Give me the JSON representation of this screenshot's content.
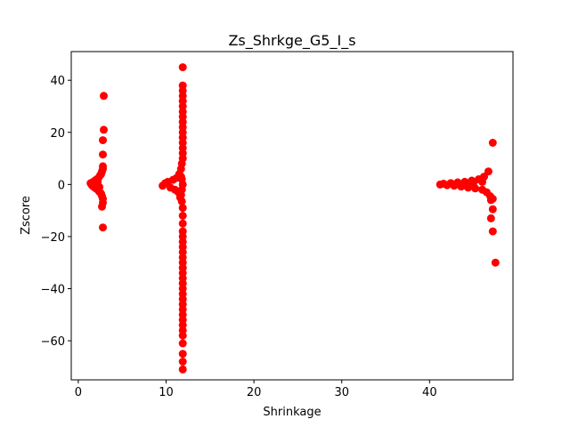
{
  "chart_data": {
    "type": "scatter",
    "title": "Zs_Shrkge_G5_I_s",
    "xlabel": "Shrinkage",
    "ylabel": "Zscore",
    "xlim": [
      -0.8,
      49.5
    ],
    "ylim": [
      -75,
      51
    ],
    "xticks": [
      0,
      10,
      20,
      30,
      40
    ],
    "yticks": [
      -60,
      -40,
      -20,
      0,
      20,
      40
    ],
    "xtick_labels": [
      "0",
      "10",
      "20",
      "30",
      "40"
    ],
    "ytick_labels": [
      "−60",
      "−40",
      "−20",
      "0",
      "20",
      "40"
    ],
    "grid": false,
    "marker_color": "#ff0000",
    "series": [
      {
        "points": [
          [
            1.4,
            0.5
          ],
          [
            1.5,
            0.0
          ],
          [
            1.6,
            -0.5
          ],
          [
            1.7,
            1.0
          ],
          [
            1.8,
            -1.0
          ],
          [
            1.9,
            1.5
          ],
          [
            2.0,
            -1.5
          ],
          [
            2.1,
            2.0
          ],
          [
            2.2,
            -2.0
          ],
          [
            2.3,
            2.5
          ],
          [
            2.4,
            -2.8
          ],
          [
            2.5,
            3.5
          ],
          [
            2.6,
            -3.5
          ],
          [
            2.6,
            4.0
          ],
          [
            2.7,
            -4.5
          ],
          [
            2.7,
            5.0
          ],
          [
            2.8,
            -5.5
          ],
          [
            2.8,
            6.0
          ],
          [
            2.8,
            -7.0
          ],
          [
            2.8,
            7.0
          ],
          [
            2.7,
            -8.5
          ],
          [
            2.8,
            11.5
          ],
          [
            2.8,
            17.0
          ],
          [
            2.9,
            21.0
          ],
          [
            2.9,
            34.0
          ],
          [
            2.8,
            -16.5
          ],
          [
            2.2,
            1.0
          ],
          [
            2.4,
            -1.0
          ],
          [
            9.6,
            -0.5
          ],
          [
            9.9,
            0.5
          ],
          [
            10.2,
            1.0
          ],
          [
            10.5,
            -1.2
          ],
          [
            10.8,
            1.8
          ],
          [
            11.0,
            -2.0
          ],
          [
            11.2,
            2.5
          ],
          [
            11.4,
            -3.0
          ],
          [
            11.5,
            4.0
          ],
          [
            11.6,
            -5.0
          ],
          [
            11.7,
            6.0
          ],
          [
            11.8,
            -6.5
          ],
          [
            11.8,
            8.0
          ],
          [
            11.9,
            -9.0
          ],
          [
            11.9,
            10.0
          ],
          [
            11.9,
            12.0
          ],
          [
            11.9,
            -12.0
          ],
          [
            11.9,
            14.0
          ],
          [
            11.9,
            -15.0
          ],
          [
            11.9,
            16.0
          ],
          [
            11.9,
            -18.0
          ],
          [
            11.9,
            18.0
          ],
          [
            11.9,
            -20.0
          ],
          [
            11.9,
            20.0
          ],
          [
            11.9,
            -22.0
          ],
          [
            11.9,
            22.0
          ],
          [
            11.9,
            -24.0
          ],
          [
            11.9,
            24.0
          ],
          [
            11.9,
            -26.0
          ],
          [
            11.9,
            26.0
          ],
          [
            11.9,
            -28.0
          ],
          [
            11.9,
            28.0
          ],
          [
            11.9,
            -30.0
          ],
          [
            11.9,
            30.0
          ],
          [
            11.9,
            -32.0
          ],
          [
            11.9,
            32.0
          ],
          [
            11.9,
            -34.0
          ],
          [
            11.9,
            34.0
          ],
          [
            11.9,
            -36.0
          ],
          [
            11.9,
            36.0
          ],
          [
            11.9,
            -38.0
          ],
          [
            11.9,
            38.0
          ],
          [
            11.9,
            -40.0
          ],
          [
            11.9,
            -42.0
          ],
          [
            11.9,
            -44.0
          ],
          [
            11.9,
            -46.0
          ],
          [
            11.9,
            -48.0
          ],
          [
            11.9,
            -50.0
          ],
          [
            11.9,
            -52.0
          ],
          [
            11.9,
            -54.0
          ],
          [
            11.9,
            -56.0
          ],
          [
            11.9,
            -58.0
          ],
          [
            11.9,
            -61.0
          ],
          [
            11.9,
            -65.0
          ],
          [
            11.9,
            -68.0
          ],
          [
            11.9,
            -71.0
          ],
          [
            11.9,
            45.0
          ],
          [
            11.9,
            0.0
          ],
          [
            11.8,
            2.0
          ],
          [
            11.8,
            -2.0
          ],
          [
            11.7,
            3.0
          ],
          [
            11.7,
            -4.0
          ],
          [
            41.2,
            0.0
          ],
          [
            41.6,
            0.3
          ],
          [
            42.0,
            -0.3
          ],
          [
            42.4,
            0.5
          ],
          [
            42.8,
            -0.5
          ],
          [
            43.2,
            0.8
          ],
          [
            43.6,
            -0.8
          ],
          [
            44.0,
            1.0
          ],
          [
            44.4,
            -1.2
          ],
          [
            44.8,
            1.5
          ],
          [
            45.2,
            -1.5
          ],
          [
            45.6,
            2.0
          ],
          [
            46.0,
            -2.0
          ],
          [
            46.2,
            3.0
          ],
          [
            46.5,
            -3.0
          ],
          [
            46.7,
            5.0
          ],
          [
            46.9,
            -4.5
          ],
          [
            47.0,
            -6.0
          ],
          [
            47.2,
            -5.5
          ],
          [
            47.0,
            -13.0
          ],
          [
            47.2,
            -9.5
          ],
          [
            47.2,
            16.0
          ],
          [
            47.2,
            -18.0
          ],
          [
            47.5,
            -30.0
          ],
          [
            43.0,
            0.2
          ],
          [
            45.0,
            0.6
          ],
          [
            44.2,
            -0.6
          ],
          [
            46.0,
            1.0
          ]
        ]
      }
    ]
  }
}
